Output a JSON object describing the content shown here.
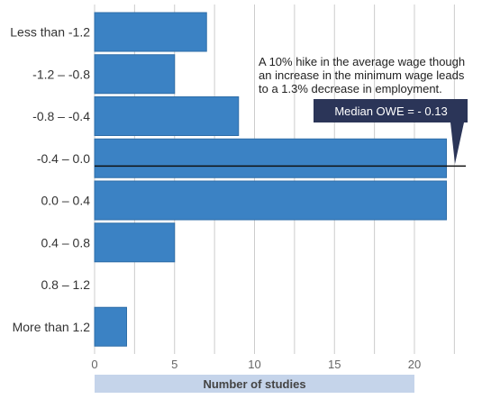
{
  "chart_data": {
    "type": "bar",
    "orientation": "horizontal",
    "categories": [
      "Less than -1.2",
      "-1.2 – -0.8",
      "-0.8 – -0.4",
      "-0.4 – 0.0",
      "0.0 – 0.4",
      "0.4 – 0.8",
      "0.8 – 1.2",
      "More than 1.2"
    ],
    "values": [
      7,
      5,
      9,
      22,
      22,
      5,
      0,
      2
    ],
    "xlabel": "Number of studies",
    "xlim": [
      0,
      24
    ],
    "xticks": [
      0,
      5,
      10,
      15,
      20
    ],
    "grid": true,
    "bar_color": "#3b82c4",
    "median_line_category": "-0.4 – 0.0",
    "annotation": "A 10% hike in the average wage though an increase in the minimum wage leads to a 1.3% decrease in employment.",
    "annotation_lines": [
      "A 10% hike in the average wage though",
      "an increase in the minimum wage leads",
      "to a 1.3% decrease in employment."
    ],
    "callout": "Median OWE = - 0.13",
    "callout_color": "#2b3558",
    "xlabel_band_color": "#c5d4ea"
  }
}
